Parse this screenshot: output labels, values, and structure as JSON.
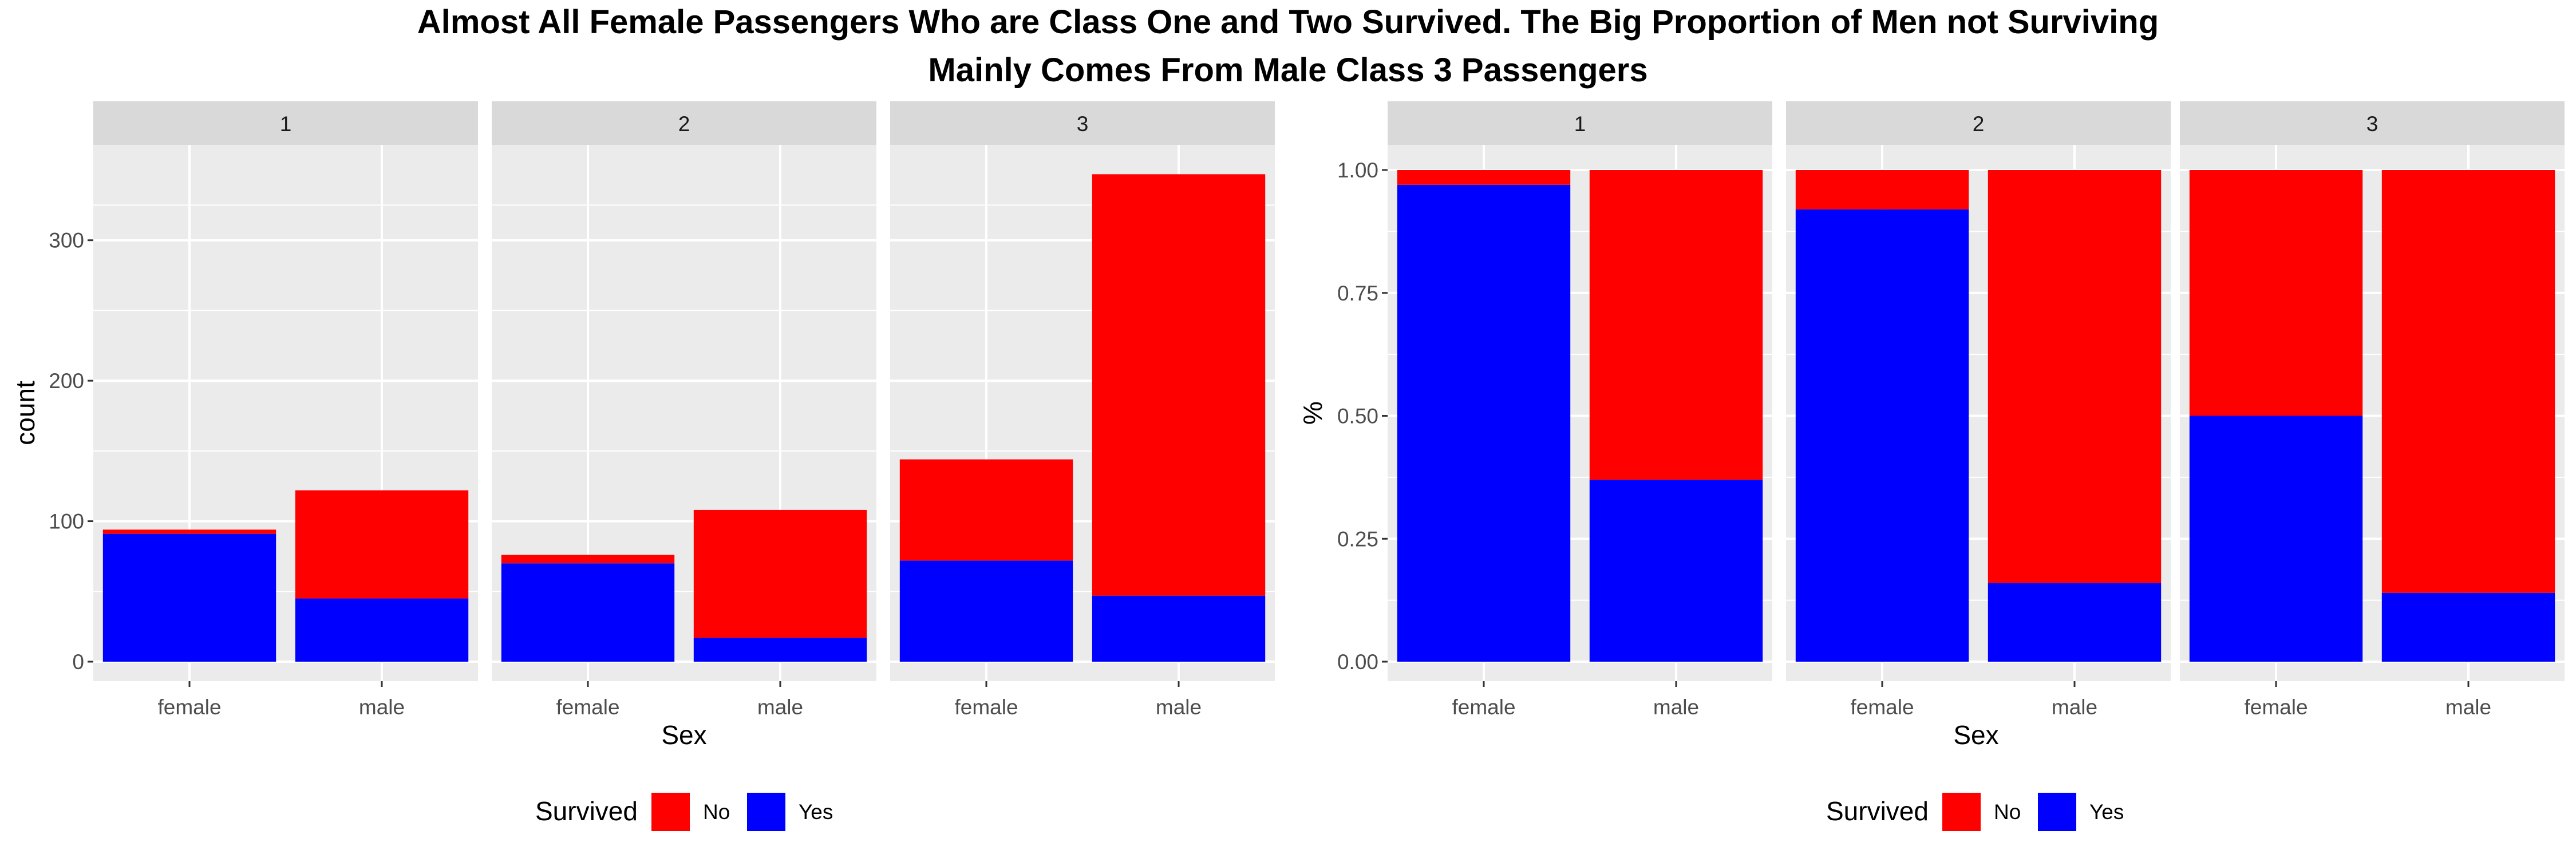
{
  "title_line1": "Almost All Female Passengers Who are Class One and Two Survived. The Big Proportion of Men not Surviving",
  "title_line2": "Mainly Comes From Male Class 3 Passengers",
  "colors": {
    "No": "#ff0000",
    "Yes": "#0000ff",
    "panel_bg": "#ebebeb",
    "strip_bg": "#d9d9d9",
    "grid": "#ffffff"
  },
  "chart_data": [
    {
      "type": "bar",
      "stacked": true,
      "facets": [
        "1",
        "2",
        "3"
      ],
      "categories": [
        "female",
        "male"
      ],
      "xlabel": "Sex",
      "ylabel": "count",
      "ylim": [
        0,
        350
      ],
      "yticks": [
        0,
        100,
        200,
        300
      ],
      "ytick_labels": [
        "0",
        "100",
        "200",
        "300"
      ],
      "legend_title": "Survived",
      "legend_position": "bottom",
      "series": [
        {
          "name": "No",
          "color": "#ff0000",
          "values": {
            "1": [
              3,
              77
            ],
            "2": [
              6,
              91
            ],
            "3": [
              72,
              300
            ]
          }
        },
        {
          "name": "Yes",
          "color": "#0000ff",
          "values": {
            "1": [
              91,
              45
            ],
            "2": [
              70,
              17
            ],
            "3": [
              72,
              47
            ]
          }
        }
      ]
    },
    {
      "type": "bar",
      "stacked": true,
      "facets": [
        "1",
        "2",
        "3"
      ],
      "categories": [
        "female",
        "male"
      ],
      "xlabel": "Sex",
      "ylabel": "%",
      "ylim": [
        0,
        1
      ],
      "yticks": [
        0,
        0.25,
        0.5,
        0.75,
        1
      ],
      "ytick_labels": [
        "0.00",
        "0.25",
        "0.50",
        "0.75",
        "1.00"
      ],
      "legend_title": "Survived",
      "legend_position": "bottom",
      "series": [
        {
          "name": "No",
          "color": "#ff0000",
          "values": {
            "1": [
              0.03,
              0.63
            ],
            "2": [
              0.08,
              0.84
            ],
            "3": [
              0.5,
              0.86
            ]
          }
        },
        {
          "name": "Yes",
          "color": "#0000ff",
          "values": {
            "1": [
              0.97,
              0.37
            ],
            "2": [
              0.92,
              0.16
            ],
            "3": [
              0.5,
              0.14
            ]
          }
        }
      ]
    }
  ]
}
